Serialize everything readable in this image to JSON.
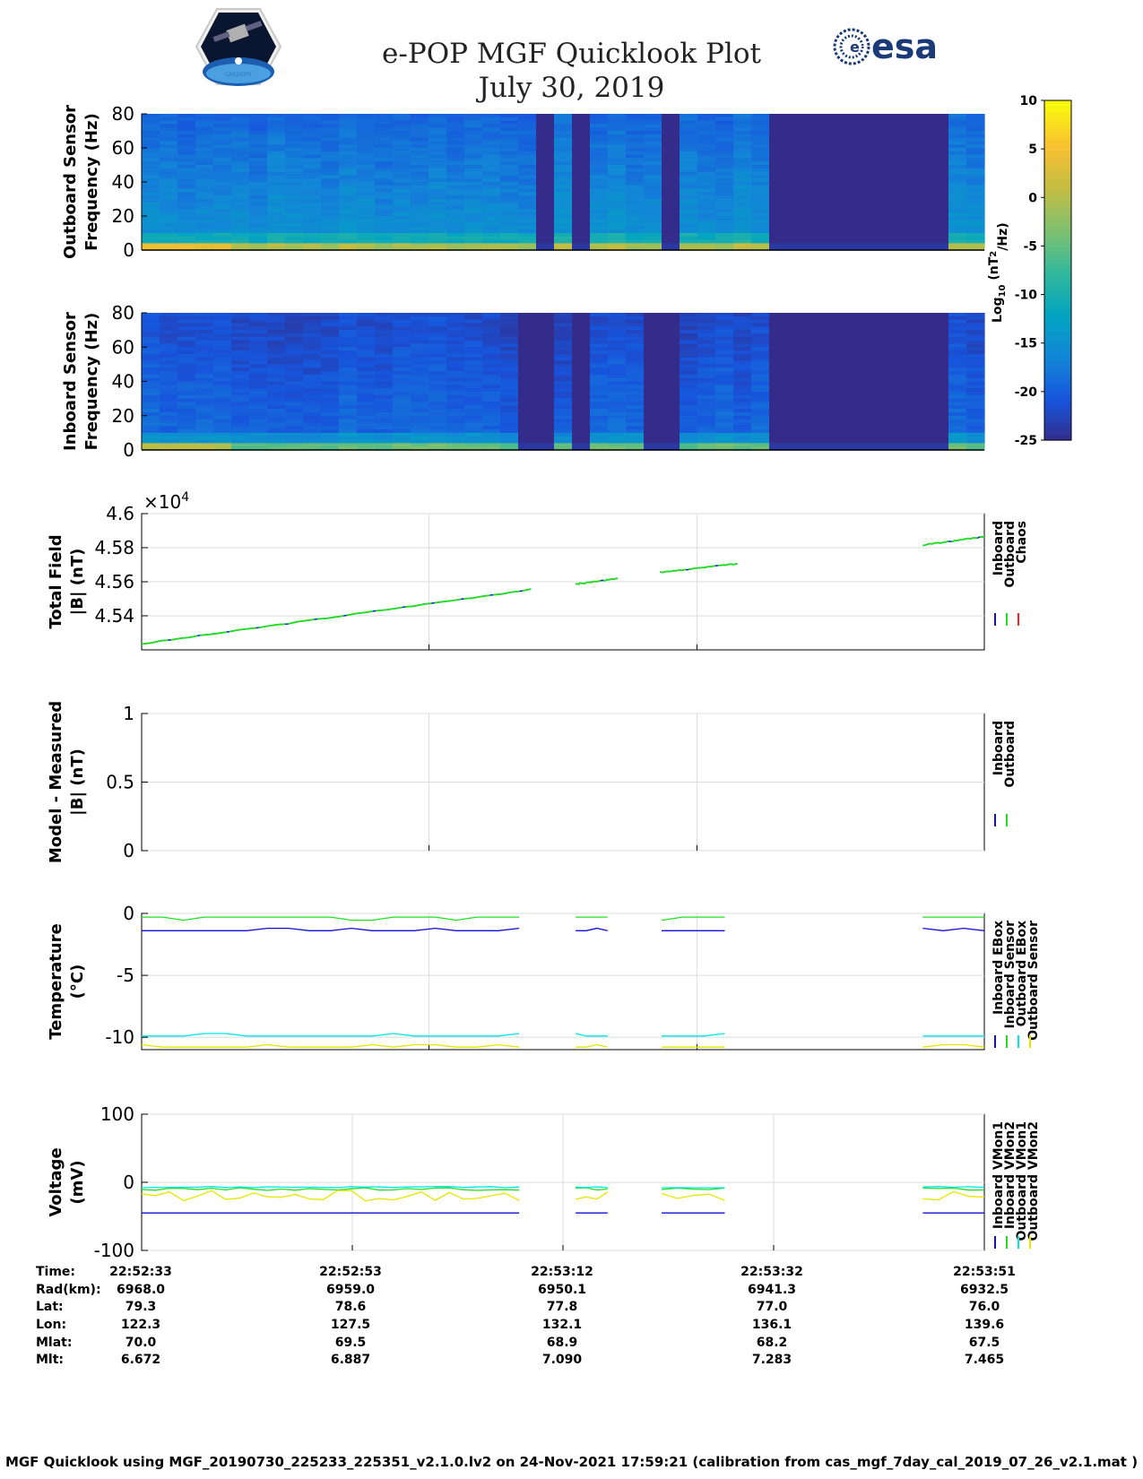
{
  "header": {
    "title_line1": "e-POP MGF Quicklook Plot",
    "title_line2": "July 30, 2019",
    "esa_logo_text": "esa",
    "cassiope_logo_text": "CASSIOPE"
  },
  "colorbar": {
    "ticks": [
      10,
      5,
      0,
      -5,
      -10,
      -15,
      -20,
      -25
    ],
    "label_main": "Log",
    "label_sub": "10",
    "label_units": " (nT",
    "label_sup": "2",
    "label_tail": "/Hz)"
  },
  "chart_data": [
    {
      "type": "heatmap",
      "name": "outboard-spectrogram",
      "ylabel_line1": "Outboard Sensor",
      "ylabel_line2": "Frequency (Hz)",
      "ylim": [
        0,
        80
      ],
      "yticks": [
        0,
        20,
        40,
        60,
        80
      ],
      "clim": [
        -25,
        10
      ],
      "gap_intervals_fraction": [
        [
          0.478,
          0.5
        ],
        [
          0.52,
          0.54
        ],
        [
          0.61,
          0.63
        ],
        [
          0.742,
          0.965
        ]
      ],
      "dim_intervals_fraction": [
        [
          0.47,
          0.5
        ],
        [
          0.5,
          0.52
        ]
      ]
    },
    {
      "type": "heatmap",
      "name": "inboard-spectrogram",
      "ylabel_line1": "Inboard Sensor",
      "ylabel_line2": "Frequency (Hz)",
      "ylim": [
        0,
        80
      ],
      "yticks": [
        0,
        20,
        40,
        60,
        80
      ],
      "clim": [
        -25,
        10
      ],
      "gap_intervals_fraction": [
        [
          0.457,
          0.5
        ],
        [
          0.52,
          0.54
        ],
        [
          0.587,
          0.63
        ],
        [
          0.742,
          0.965
        ]
      ]
    },
    {
      "type": "line",
      "name": "total-field",
      "ylabel_line1": "Total Field",
      "ylabel_line2": "|B| (nT)",
      "exponent_label": "×10",
      "exponent_sup": "4",
      "ylim": [
        4.52,
        4.6
      ],
      "yticks": [
        4.54,
        4.56,
        4.58,
        4.6
      ],
      "legend": [
        "Inboard",
        "Outboard",
        "Chaos"
      ],
      "legend_colors": [
        "#1010d0",
        "#22dd22",
        "#ff2020"
      ],
      "series": [
        {
          "name": "Outboard",
          "segments": [
            {
              "t": [
                0.0,
                0.462
              ],
              "y": [
                4.5235,
                4.5555
              ]
            },
            {
              "t": [
                0.515,
                0.565
              ],
              "y": [
                4.5585,
                4.562
              ]
            },
            {
              "t": [
                0.615,
                0.707
              ],
              "y": [
                4.5655,
                4.5705
              ]
            },
            {
              "t": [
                0.927,
                1.0
              ],
              "y": [
                4.5815,
                4.5865
              ]
            }
          ]
        }
      ]
    },
    {
      "type": "line",
      "name": "model-minus-measured",
      "ylabel_line1": "Model - Measured",
      "ylabel_line2": "|B| (nT)",
      "ylim": [
        0,
        1
      ],
      "yticks": [
        0,
        0.5,
        1
      ],
      "legend": [
        "Inboard",
        "Outboard"
      ],
      "legend_colors": [
        "#1010d0",
        "#22dd22"
      ],
      "series": []
    },
    {
      "type": "line",
      "name": "temperature",
      "ylabel_line1": "Temperature",
      "ylabel_line2": "(°C)",
      "ylim": [
        -11,
        0
      ],
      "yticks": [
        -10,
        -5,
        0
      ],
      "legend": [
        "Inboard EBox",
        "Inboard Sensor",
        "Outboard EBox",
        "Outboard Sensor"
      ],
      "legend_colors": [
        "#1010d0",
        "#22dd22",
        "#00e5e5",
        "#e5e500"
      ],
      "series": [
        {
          "name": "Inboard EBox",
          "base": -1.4,
          "bump": 0.2
        },
        {
          "name": "Inboard Sensor",
          "base": -0.3,
          "bump": 0.25
        },
        {
          "name": "Outboard EBox",
          "base": -9.9,
          "bump": 0.2
        },
        {
          "name": "Outboard Sensor",
          "base": -10.8,
          "bump": 0.2
        }
      ],
      "segments_fraction": [
        [
          0.0,
          0.448
        ],
        [
          0.515,
          0.553
        ],
        [
          0.617,
          0.692
        ],
        [
          0.927,
          1.0
        ]
      ]
    },
    {
      "type": "line",
      "name": "voltage",
      "ylabel_line1": "Voltage",
      "ylabel_line2": "(mV)",
      "ylim": [
        -100,
        100
      ],
      "yticks": [
        -100,
        0,
        100
      ],
      "legend": [
        "Inboard VMon1",
        "Inboard VMon2",
        "Outboard VMon1",
        "Outboard VMon2"
      ],
      "legend_colors": [
        "#1010d0",
        "#22dd22",
        "#00e5e5",
        "#e5e500"
      ],
      "series": [
        {
          "name": "Inboard VMon1",
          "base": -45,
          "jitter": 0
        },
        {
          "name": "Inboard VMon2",
          "base": -10,
          "jitter": 2
        },
        {
          "name": "Outboard VMon1",
          "base": -7,
          "jitter": 1
        },
        {
          "name": "Outboard VMon2",
          "base": -20,
          "jitter": 8
        }
      ],
      "segments_fraction": [
        [
          0.0,
          0.448
        ],
        [
          0.515,
          0.553
        ],
        [
          0.617,
          0.692
        ],
        [
          0.927,
          1.0
        ]
      ]
    }
  ],
  "info_table": {
    "labels": [
      "Time:",
      "Rad(km):",
      "Lat:",
      "Lon:",
      "Mlat:",
      "Mlt:"
    ],
    "columns": [
      [
        "22:52:33",
        "6968.0",
        "79.3",
        "122.3",
        "70.0",
        "6.672"
      ],
      [
        "22:52:53",
        "6959.0",
        "78.6",
        "127.5",
        "69.5",
        "6.887"
      ],
      [
        "22:53:12",
        "6950.1",
        "77.8",
        "132.1",
        "68.9",
        "7.090"
      ],
      [
        "22:53:32",
        "6941.3",
        "77.0",
        "136.1",
        "68.2",
        "7.283"
      ],
      [
        "22:53:51",
        "6932.5",
        "76.0",
        "139.6",
        "67.5",
        "7.465"
      ]
    ]
  },
  "footer": "MGF Quicklook using MGF_20190730_225233_225351_v2.1.0.lv2 on 24-Nov-2021 17:59:21 (calibration from cas_mgf_7day_cal_2019_07_26_v2.1.mat )"
}
